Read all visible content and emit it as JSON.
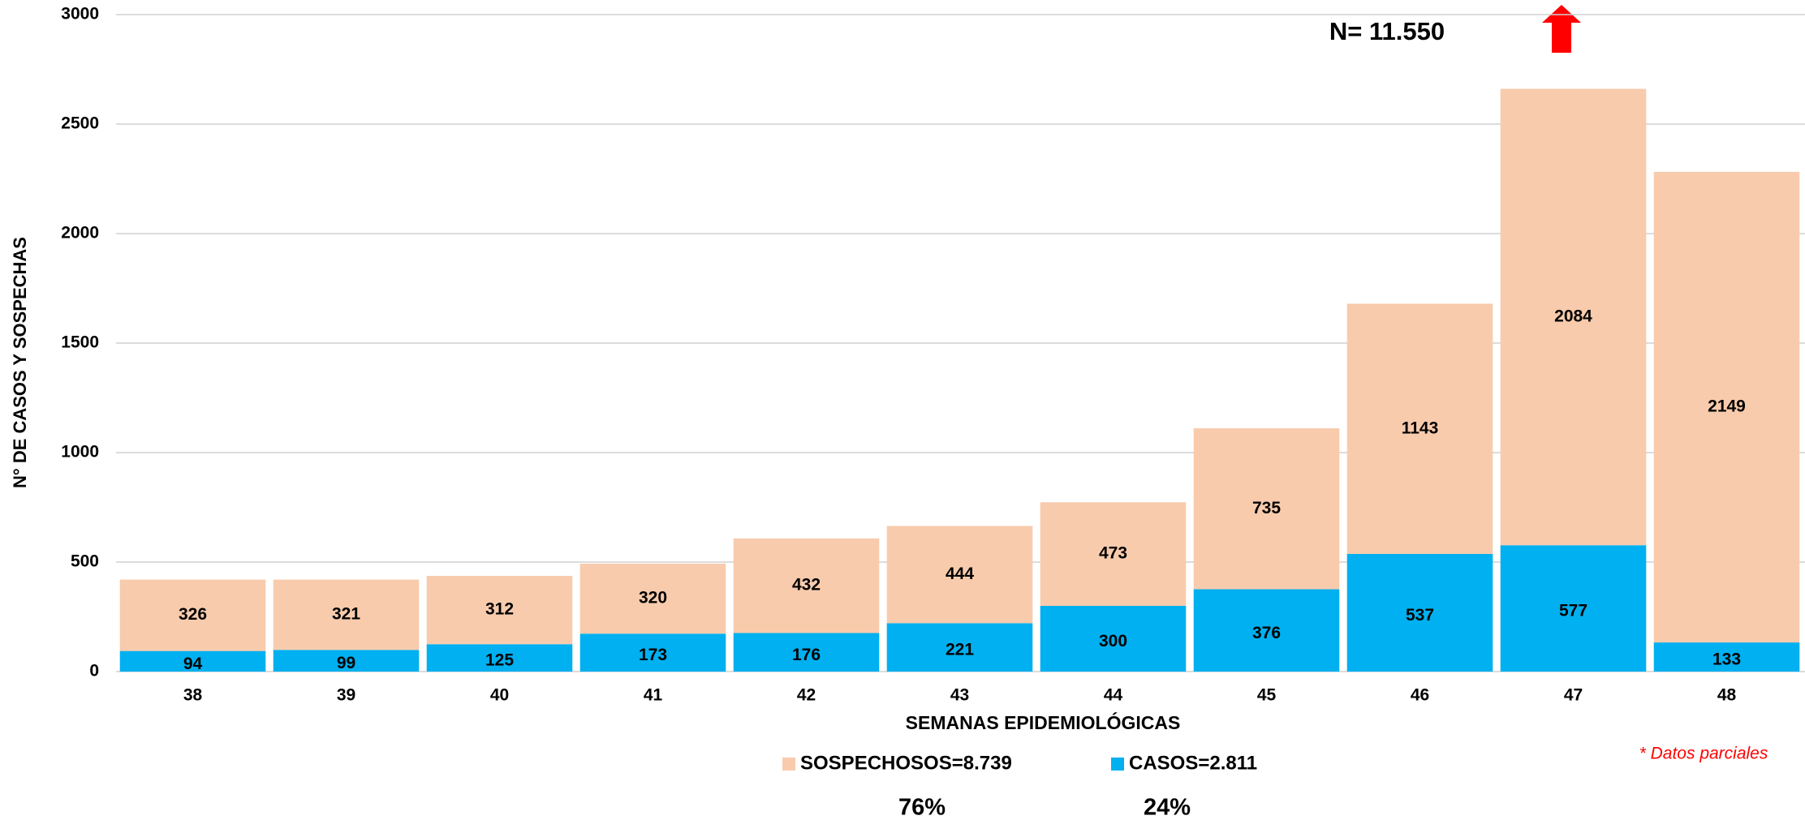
{
  "chart_data": {
    "type": "stacked_bar",
    "y_label": "N° DE CASOS Y SOSPECHAS",
    "x_label": "SEMANAS EPIDEMIOLÓGICAS",
    "annotations": [
      "N= 11.550",
      "* Datos parciales",
      "76%",
      "24%"
    ],
    "categories": [
      "38",
      "39",
      "40",
      "41",
      "42",
      "43",
      "44",
      "45",
      "46",
      "47",
      "48"
    ],
    "series": [
      {
        "name": "CASOS=2.811",
        "color": "#00b0f0",
        "values": [
          94,
          99,
          125,
          173,
          176,
          221,
          300,
          376,
          537,
          577,
          133
        ]
      },
      {
        "name": "SOSPECHOSOS=8.739",
        "color": "#f8cbad",
        "values": [
          326,
          321,
          312,
          320,
          432,
          444,
          473,
          735,
          1143,
          2084,
          2149
        ]
      }
    ],
    "ylim": [
      0,
      3000
    ],
    "yticks": [
      0,
      500,
      1000,
      1500,
      2000,
      2500,
      3000
    ],
    "grid": true
  }
}
